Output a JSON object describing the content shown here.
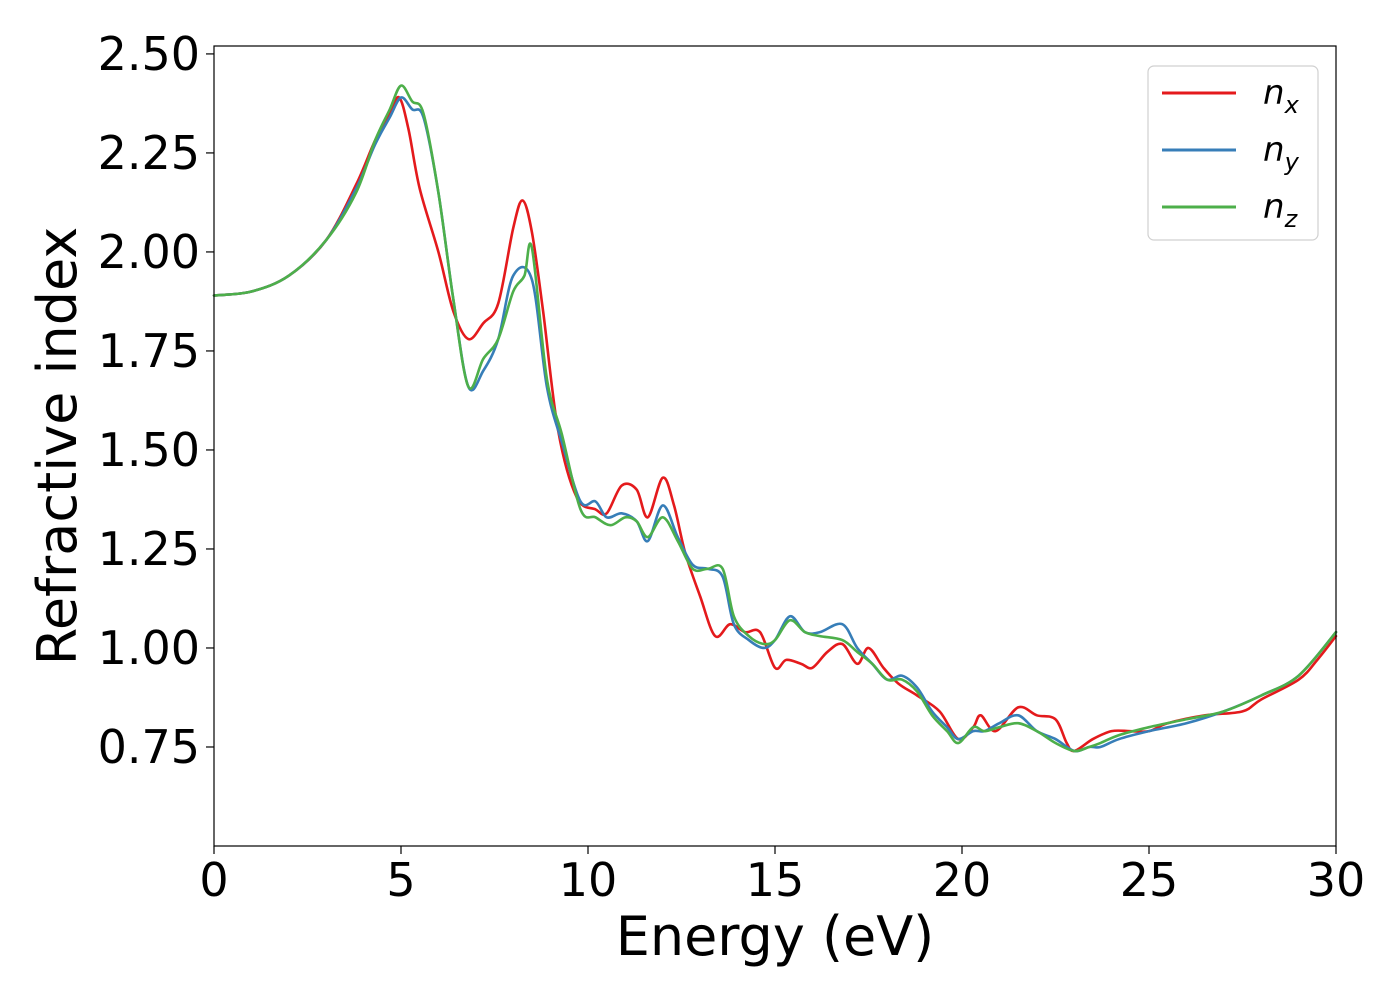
{
  "chart_data": {
    "type": "line",
    "xlabel": "Energy (eV)",
    "ylabel": "Refractive index",
    "xlim": [
      0,
      30
    ],
    "ylim": [
      0.5,
      2.52
    ],
    "xticks": [
      "0",
      "5",
      "10",
      "15",
      "20",
      "25",
      "30"
    ],
    "yticks": [
      "0.75",
      "1.00",
      "1.25",
      "1.50",
      "1.75",
      "2.00",
      "2.25",
      "2.50"
    ],
    "grid": false,
    "legend_position": "top-right",
    "series": [
      {
        "name": "n",
        "subscript": "x",
        "color": "#e41a1c",
        "points": [
          [
            0,
            1.89
          ],
          [
            1,
            1.9
          ],
          [
            2,
            1.94
          ],
          [
            3,
            2.03
          ],
          [
            3.8,
            2.17
          ],
          [
            4.3,
            2.28
          ],
          [
            4.7,
            2.35
          ],
          [
            4.95,
            2.39
          ],
          [
            5.2,
            2.31
          ],
          [
            5.5,
            2.16
          ],
          [
            6.0,
            2.0
          ],
          [
            6.4,
            1.85
          ],
          [
            6.8,
            1.78
          ],
          [
            7.2,
            1.82
          ],
          [
            7.6,
            1.87
          ],
          [
            8.0,
            2.06
          ],
          [
            8.25,
            2.13
          ],
          [
            8.5,
            2.05
          ],
          [
            8.8,
            1.85
          ],
          [
            9.2,
            1.55
          ],
          [
            9.7,
            1.38
          ],
          [
            10.2,
            1.35
          ],
          [
            10.5,
            1.34
          ],
          [
            10.9,
            1.41
          ],
          [
            11.3,
            1.4
          ],
          [
            11.6,
            1.33
          ],
          [
            12.0,
            1.43
          ],
          [
            12.3,
            1.36
          ],
          [
            12.6,
            1.24
          ],
          [
            13.0,
            1.13
          ],
          [
            13.4,
            1.03
          ],
          [
            13.8,
            1.06
          ],
          [
            14.2,
            1.04
          ],
          [
            14.6,
            1.04
          ],
          [
            15.0,
            0.95
          ],
          [
            15.3,
            0.97
          ],
          [
            15.7,
            0.96
          ],
          [
            16.0,
            0.95
          ],
          [
            16.4,
            0.99
          ],
          [
            16.8,
            1.01
          ],
          [
            17.2,
            0.96
          ],
          [
            17.5,
            1.0
          ],
          [
            17.9,
            0.95
          ],
          [
            18.3,
            0.91
          ],
          [
            18.8,
            0.88
          ],
          [
            19.4,
            0.84
          ],
          [
            19.9,
            0.77
          ],
          [
            20.3,
            0.8
          ],
          [
            20.5,
            0.83
          ],
          [
            20.9,
            0.79
          ],
          [
            21.5,
            0.85
          ],
          [
            22.0,
            0.83
          ],
          [
            22.5,
            0.82
          ],
          [
            22.8,
            0.76
          ],
          [
            23.0,
            0.74
          ],
          [
            23.5,
            0.77
          ],
          [
            24.0,
            0.79
          ],
          [
            24.5,
            0.79
          ],
          [
            25.0,
            0.79
          ],
          [
            25.5,
            0.81
          ],
          [
            26.5,
            0.83
          ],
          [
            27.5,
            0.84
          ],
          [
            28.0,
            0.87
          ],
          [
            29.0,
            0.92
          ],
          [
            29.5,
            0.97
          ],
          [
            30,
            1.03
          ]
        ]
      },
      {
        "name": "n",
        "subscript": "y",
        "color": "#377eb8",
        "points": [
          [
            0,
            1.89
          ],
          [
            1,
            1.9
          ],
          [
            2,
            1.94
          ],
          [
            3,
            2.03
          ],
          [
            3.8,
            2.16
          ],
          [
            4.3,
            2.27
          ],
          [
            4.7,
            2.34
          ],
          [
            5.0,
            2.39
          ],
          [
            5.3,
            2.36
          ],
          [
            5.6,
            2.34
          ],
          [
            6.0,
            2.15
          ],
          [
            6.4,
            1.88
          ],
          [
            6.8,
            1.66
          ],
          [
            7.2,
            1.7
          ],
          [
            7.6,
            1.78
          ],
          [
            8.0,
            1.94
          ],
          [
            8.5,
            1.93
          ],
          [
            8.9,
            1.66
          ],
          [
            9.3,
            1.52
          ],
          [
            9.8,
            1.37
          ],
          [
            10.2,
            1.37
          ],
          [
            10.5,
            1.33
          ],
          [
            10.9,
            1.34
          ],
          [
            11.3,
            1.32
          ],
          [
            11.6,
            1.27
          ],
          [
            12.0,
            1.36
          ],
          [
            12.4,
            1.28
          ],
          [
            12.8,
            1.21
          ],
          [
            13.2,
            1.2
          ],
          [
            13.6,
            1.18
          ],
          [
            13.9,
            1.06
          ],
          [
            14.3,
            1.02
          ],
          [
            14.7,
            1.0
          ],
          [
            15.0,
            1.02
          ],
          [
            15.4,
            1.08
          ],
          [
            15.8,
            1.04
          ],
          [
            16.2,
            1.04
          ],
          [
            16.8,
            1.06
          ],
          [
            17.2,
            1.0
          ],
          [
            17.6,
            0.96
          ],
          [
            18.0,
            0.92
          ],
          [
            18.4,
            0.93
          ],
          [
            18.8,
            0.9
          ],
          [
            19.2,
            0.84
          ],
          [
            19.6,
            0.8
          ],
          [
            19.9,
            0.77
          ],
          [
            20.3,
            0.79
          ],
          [
            20.6,
            0.79
          ],
          [
            21.0,
            0.81
          ],
          [
            21.5,
            0.83
          ],
          [
            22.0,
            0.79
          ],
          [
            22.5,
            0.77
          ],
          [
            23.0,
            0.74
          ],
          [
            23.4,
            0.75
          ],
          [
            23.7,
            0.75
          ],
          [
            24.2,
            0.77
          ],
          [
            25.0,
            0.79
          ],
          [
            26.0,
            0.81
          ],
          [
            27.0,
            0.84
          ],
          [
            28.0,
            0.88
          ],
          [
            29.0,
            0.93
          ],
          [
            30,
            1.04
          ]
        ]
      },
      {
        "name": "n",
        "subscript": "z",
        "color": "#4daf4a",
        "points": [
          [
            0,
            1.89
          ],
          [
            1,
            1.9
          ],
          [
            2,
            1.94
          ],
          [
            3,
            2.03
          ],
          [
            3.8,
            2.15
          ],
          [
            4.3,
            2.28
          ],
          [
            4.7,
            2.36
          ],
          [
            5.0,
            2.42
          ],
          [
            5.3,
            2.38
          ],
          [
            5.6,
            2.35
          ],
          [
            6.0,
            2.15
          ],
          [
            6.4,
            1.88
          ],
          [
            6.8,
            1.66
          ],
          [
            7.2,
            1.73
          ],
          [
            7.6,
            1.78
          ],
          [
            8.0,
            1.9
          ],
          [
            8.3,
            1.94
          ],
          [
            8.5,
            2.01
          ],
          [
            8.9,
            1.68
          ],
          [
            9.3,
            1.54
          ],
          [
            9.8,
            1.35
          ],
          [
            10.2,
            1.33
          ],
          [
            10.6,
            1.31
          ],
          [
            11.0,
            1.33
          ],
          [
            11.3,
            1.32
          ],
          [
            11.6,
            1.28
          ],
          [
            12.0,
            1.33
          ],
          [
            12.4,
            1.27
          ],
          [
            12.8,
            1.2
          ],
          [
            13.2,
            1.2
          ],
          [
            13.6,
            1.2
          ],
          [
            13.9,
            1.08
          ],
          [
            14.3,
            1.03
          ],
          [
            14.7,
            1.01
          ],
          [
            15.0,
            1.02
          ],
          [
            15.4,
            1.07
          ],
          [
            15.8,
            1.04
          ],
          [
            16.2,
            1.03
          ],
          [
            16.8,
            1.02
          ],
          [
            17.2,
            0.99
          ],
          [
            17.6,
            0.96
          ],
          [
            18.0,
            0.92
          ],
          [
            18.4,
            0.92
          ],
          [
            18.8,
            0.89
          ],
          [
            19.2,
            0.83
          ],
          [
            19.6,
            0.79
          ],
          [
            19.9,
            0.76
          ],
          [
            20.3,
            0.8
          ],
          [
            20.6,
            0.79
          ],
          [
            21.0,
            0.8
          ],
          [
            21.5,
            0.81
          ],
          [
            22.0,
            0.79
          ],
          [
            22.5,
            0.76
          ],
          [
            23.0,
            0.74
          ],
          [
            23.4,
            0.75
          ],
          [
            23.7,
            0.76
          ],
          [
            24.2,
            0.78
          ],
          [
            25.0,
            0.8
          ],
          [
            26.0,
            0.82
          ],
          [
            27.0,
            0.84
          ],
          [
            28.0,
            0.88
          ],
          [
            29.0,
            0.93
          ],
          [
            30,
            1.04
          ]
        ]
      }
    ]
  }
}
